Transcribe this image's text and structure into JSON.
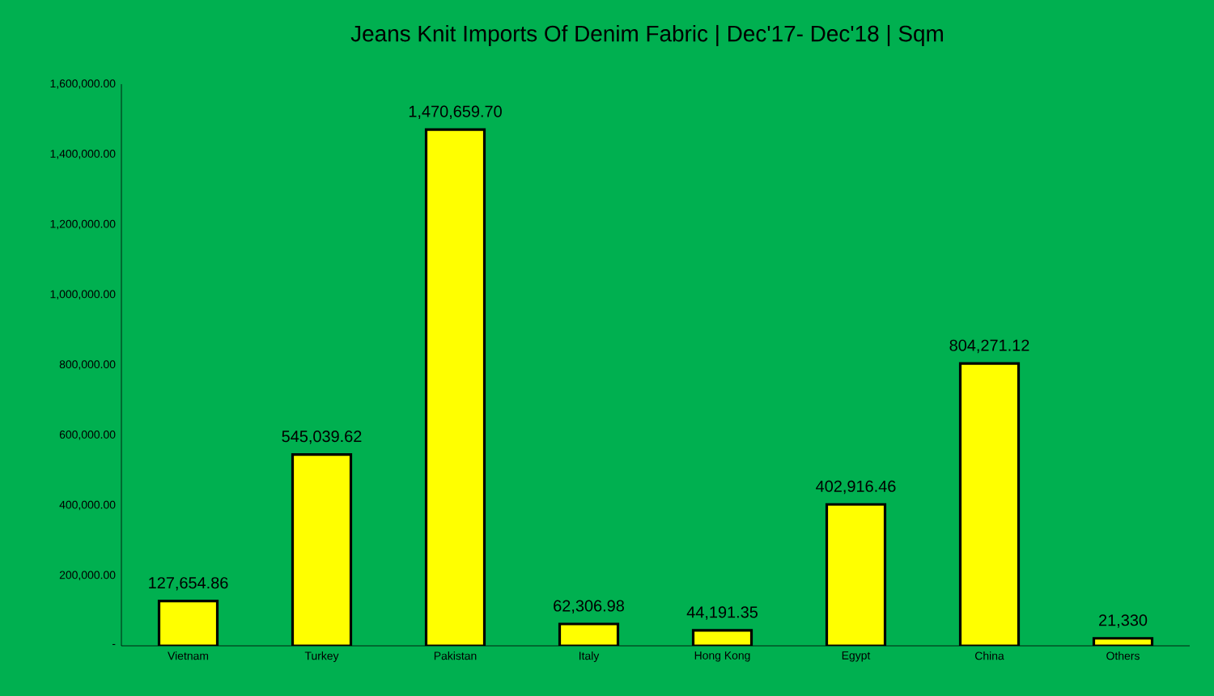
{
  "chart_data": {
    "type": "bar",
    "title": "Jeans Knit Imports Of Denim Fabric | Dec'17- Dec'18 | Sqm",
    "categories": [
      "Vietnam",
      "Turkey",
      "Pakistan",
      "Italy",
      "Hong Kong",
      "Egypt",
      "China",
      "Others"
    ],
    "values": [
      127654.86,
      545039.62,
      1470659.7,
      62306.98,
      44191.35,
      402916.46,
      804271.12,
      21330
    ],
    "value_labels": [
      "127,654.86",
      "545,039.62",
      "1,470,659.70",
      "62,306.98",
      "44,191.35",
      "402,916.46",
      "804,271.12",
      "21,330"
    ],
    "color": "#ffff00",
    "ylim": [
      0,
      1600000
    ],
    "yticks": [
      {
        "value": 0,
        "label": "-"
      },
      {
        "value": 200000,
        "label": "200,000.00"
      },
      {
        "value": 400000,
        "label": "400,000.00"
      },
      {
        "value": 600000,
        "label": "600,000.00"
      },
      {
        "value": 800000,
        "label": "800,000.00"
      },
      {
        "value": 1000000,
        "label": "1,000,000.00"
      },
      {
        "value": 1200000,
        "label": "1,200,000.00"
      },
      {
        "value": 1400000,
        "label": "1,400,000.00"
      },
      {
        "value": 1600000,
        "label": "1,600,000.00"
      }
    ],
    "grid": false
  }
}
